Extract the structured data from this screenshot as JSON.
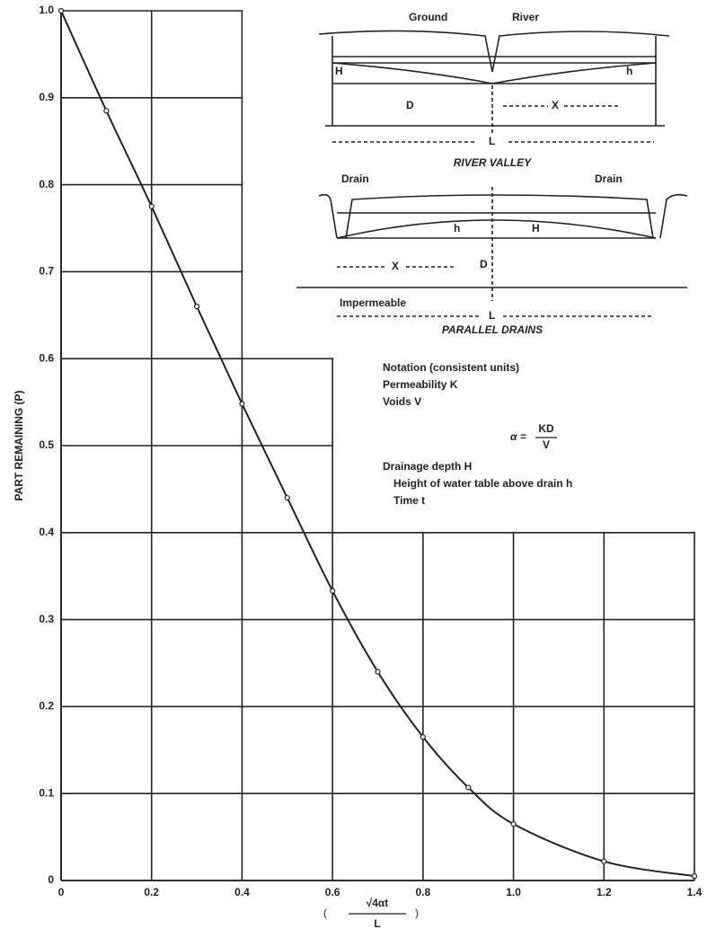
{
  "chart_data": {
    "type": "line",
    "y_label": "PART REMAINING (P)",
    "x_label": {
      "numerator": "√4αt",
      "denominator": "L"
    },
    "x": [
      0,
      0.1,
      0.2,
      0.3,
      0.4,
      0.5,
      0.6,
      0.7,
      0.8,
      0.9,
      1.0,
      1.2,
      1.4
    ],
    "values": [
      1.0,
      0.885,
      0.775,
      0.66,
      0.548,
      0.44,
      0.333,
      0.24,
      0.165,
      0.107,
      0.065,
      0.022,
      0.005
    ],
    "color": "#222222",
    "xlim": [
      0,
      1.4
    ],
    "ylim": [
      0,
      1.0
    ],
    "xticks": [
      0,
      0.2,
      0.4,
      0.6,
      0.8,
      {
        "value": 1.0,
        "label": "1.0"
      },
      1.2,
      1.4
    ],
    "yticks": [
      0,
      0.1,
      0.2,
      0.3,
      0.4,
      0.5,
      0.6,
      0.7,
      0.8,
      0.9,
      {
        "value": 1.0,
        "label": "1.0"
      }
    ],
    "grid": true
  },
  "diagram": {
    "river_valley": {
      "ground": "Ground",
      "river": "River",
      "H": "H",
      "h": "h",
      "D": "D",
      "X": "X",
      "L": "L",
      "title": "RIVER VALLEY"
    },
    "parallel_drains": {
      "drain_left": "Drain",
      "drain_right": "Drain",
      "h": "h",
      "H": "H",
      "X": "X",
      "D": "D",
      "impermeable": "Impermeable",
      "L": "L",
      "title": "PARALLEL DRAINS"
    },
    "notation": {
      "heading": "Notation (consistent units)",
      "permeability": "Permeability  K",
      "voids": "Voids  V",
      "formula": {
        "lhs": "α =",
        "numerator": "KD",
        "denominator": "V"
      },
      "drainage_depth": "Drainage depth  H",
      "height": "Height of water table above drain h",
      "time": "Time t"
    }
  }
}
